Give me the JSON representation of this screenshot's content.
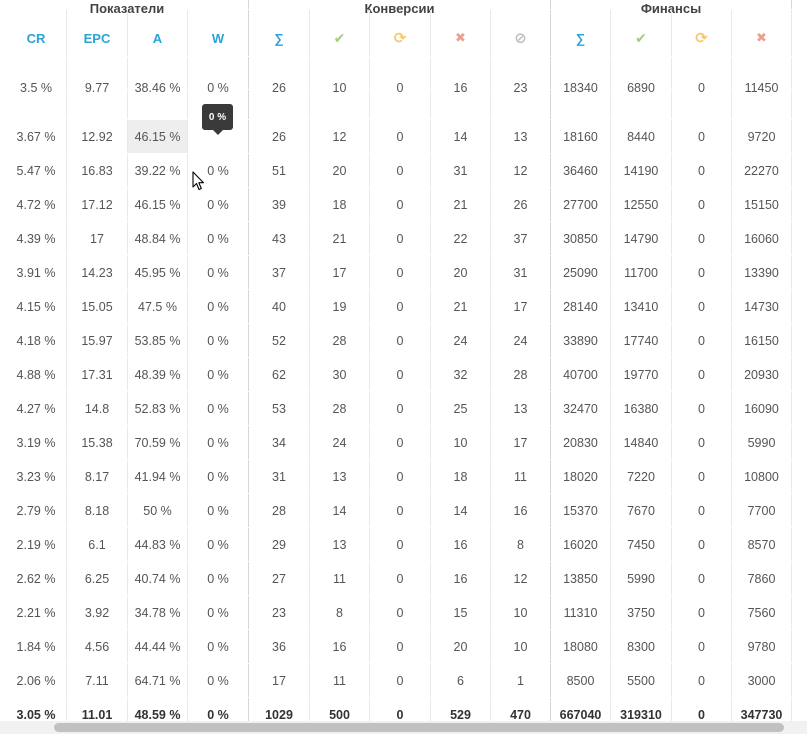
{
  "group_headers": [
    "Показатели",
    "Конверсии",
    "Финансы"
  ],
  "columns": [
    {
      "key": "cr",
      "label": "CR",
      "icon": ""
    },
    {
      "key": "epc",
      "label": "EPC",
      "icon": ""
    },
    {
      "key": "a",
      "label": "A",
      "icon": ""
    },
    {
      "key": "w",
      "label": "W",
      "icon": ""
    },
    {
      "key": "conv_total",
      "label": "∑",
      "icon": ""
    },
    {
      "key": "conv_approved",
      "label": "",
      "icon": "check-icon"
    },
    {
      "key": "conv_hold",
      "label": "",
      "icon": "refresh-icon"
    },
    {
      "key": "conv_rejected",
      "label": "",
      "icon": "x-icon"
    },
    {
      "key": "conv_trash",
      "label": "",
      "icon": "ban-icon"
    },
    {
      "key": "fin_total",
      "label": "∑",
      "icon": ""
    },
    {
      "key": "fin_approved",
      "label": "",
      "icon": "check-icon"
    },
    {
      "key": "fin_hold",
      "label": "",
      "icon": "refresh-icon"
    },
    {
      "key": "fin_rejected",
      "label": "",
      "icon": "x-icon"
    }
  ],
  "partial_row": [
    "3.5 %",
    "9.77",
    "38.46 %",
    "0 %",
    "26",
    "10",
    "0",
    "16",
    "23",
    "18340",
    "6890",
    "0",
    "11450"
  ],
  "rows": [
    [
      "3.67 %",
      "12.92",
      "46.15 %",
      "",
      "26",
      "12",
      "0",
      "14",
      "13",
      "18160",
      "8440",
      "0",
      "9720"
    ],
    [
      "5.47 %",
      "16.83",
      "39.22 %",
      "0 %",
      "51",
      "20",
      "0",
      "31",
      "12",
      "36460",
      "14190",
      "0",
      "22270"
    ],
    [
      "4.72 %",
      "17.12",
      "46.15 %",
      "0 %",
      "39",
      "18",
      "0",
      "21",
      "26",
      "27700",
      "12550",
      "0",
      "15150"
    ],
    [
      "4.39 %",
      "17",
      "48.84 %",
      "0 %",
      "43",
      "21",
      "0",
      "22",
      "37",
      "30850",
      "14790",
      "0",
      "16060"
    ],
    [
      "3.91 %",
      "14.23",
      "45.95 %",
      "0 %",
      "37",
      "17",
      "0",
      "20",
      "31",
      "25090",
      "11700",
      "0",
      "13390"
    ],
    [
      "4.15 %",
      "15.05",
      "47.5 %",
      "0 %",
      "40",
      "19",
      "0",
      "21",
      "17",
      "28140",
      "13410",
      "0",
      "14730"
    ],
    [
      "4.18 %",
      "15.97",
      "53.85 %",
      "0 %",
      "52",
      "28",
      "0",
      "24",
      "24",
      "33890",
      "17740",
      "0",
      "16150"
    ],
    [
      "4.88 %",
      "17.31",
      "48.39 %",
      "0 %",
      "62",
      "30",
      "0",
      "32",
      "28",
      "40700",
      "19770",
      "0",
      "20930"
    ],
    [
      "4.27 %",
      "14.8",
      "52.83 %",
      "0 %",
      "53",
      "28",
      "0",
      "25",
      "13",
      "32470",
      "16380",
      "0",
      "16090"
    ],
    [
      "3.19 %",
      "15.38",
      "70.59 %",
      "0 %",
      "34",
      "24",
      "0",
      "10",
      "17",
      "20830",
      "14840",
      "0",
      "5990"
    ],
    [
      "3.23 %",
      "8.17",
      "41.94 %",
      "0 %",
      "31",
      "13",
      "0",
      "18",
      "11",
      "18020",
      "7220",
      "0",
      "10800"
    ],
    [
      "2.79 %",
      "8.18",
      "50 %",
      "0 %",
      "28",
      "14",
      "0",
      "14",
      "16",
      "15370",
      "7670",
      "0",
      "7700"
    ],
    [
      "2.19 %",
      "6.1",
      "44.83 %",
      "0 %",
      "29",
      "13",
      "0",
      "16",
      "8",
      "16020",
      "7450",
      "0",
      "8570"
    ],
    [
      "2.62 %",
      "6.25",
      "40.74 %",
      "0 %",
      "27",
      "11",
      "0",
      "16",
      "12",
      "13850",
      "5990",
      "0",
      "7860"
    ],
    [
      "2.21 %",
      "3.92",
      "34.78 %",
      "0 %",
      "23",
      "8",
      "0",
      "15",
      "10",
      "11310",
      "3750",
      "0",
      "7560"
    ],
    [
      "1.84 %",
      "4.56",
      "44.44 %",
      "0 %",
      "36",
      "16",
      "0",
      "20",
      "10",
      "18080",
      "8300",
      "0",
      "9780"
    ],
    [
      "2.06 %",
      "7.11",
      "64.71 %",
      "0 %",
      "17",
      "11",
      "0",
      "6",
      "1",
      "8500",
      "5500",
      "0",
      "3000"
    ]
  ],
  "total_row": [
    "3.05 %",
    "11.01",
    "48.59 %",
    "0 %",
    "1029",
    "500",
    "0",
    "529",
    "470",
    "667040",
    "319310",
    "0",
    "347730"
  ],
  "tooltip": {
    "text": "0 %"
  },
  "colors": {
    "accent": "#2ba3d6",
    "check": "#9ccf7e",
    "hold": "#f5c96b",
    "rejected": "#eba08f",
    "trash": "#bdbdbd",
    "tooltip_bg": "#3a3a3a"
  }
}
